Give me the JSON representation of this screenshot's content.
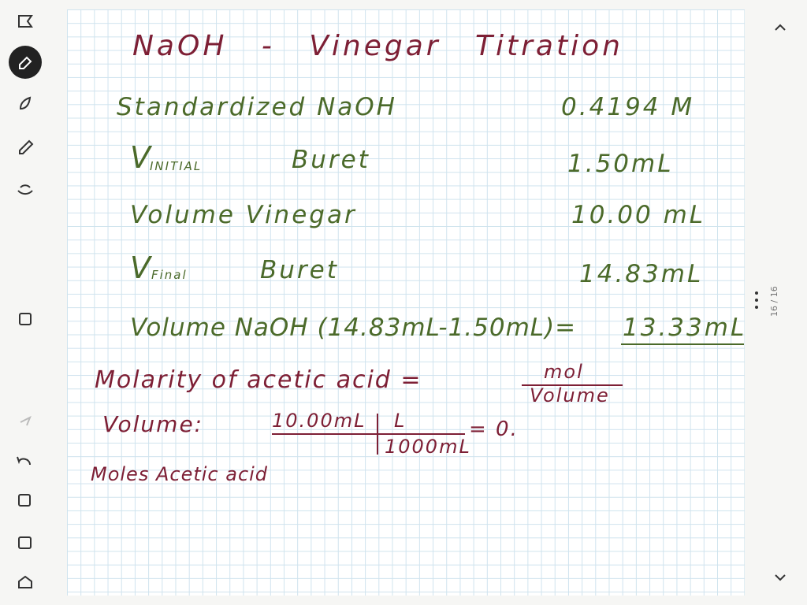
{
  "note": {
    "title": "NaOH - Vinegar Titration",
    "rows": [
      {
        "label": "Standardized NaOH",
        "value": "0.4194 M"
      },
      {
        "label": "V",
        "subscript": "INITIAL",
        "label_tail": "Buret",
        "value": "1.50mL"
      },
      {
        "label": "Volume Vinegar",
        "value": "10.00 mL"
      },
      {
        "label": "V",
        "subscript": "Final",
        "label_tail": "Buret",
        "value": "14.83mL"
      },
      {
        "label": "Volume NaOH (14.83mL-1.50mL)=",
        "value": "13.33mL"
      }
    ],
    "molarity": {
      "label": "Molarity of acetic acid =",
      "numerator": "mol",
      "denominator": "Volume"
    },
    "volume_calc": {
      "label": "Volume:",
      "numerator_1": "10.00mL",
      "numerator_2": "L",
      "denominator": "1000mL",
      "result": "= 0."
    },
    "moles": "Moles Acetic acid"
  },
  "page_indicator": "16 / 16"
}
